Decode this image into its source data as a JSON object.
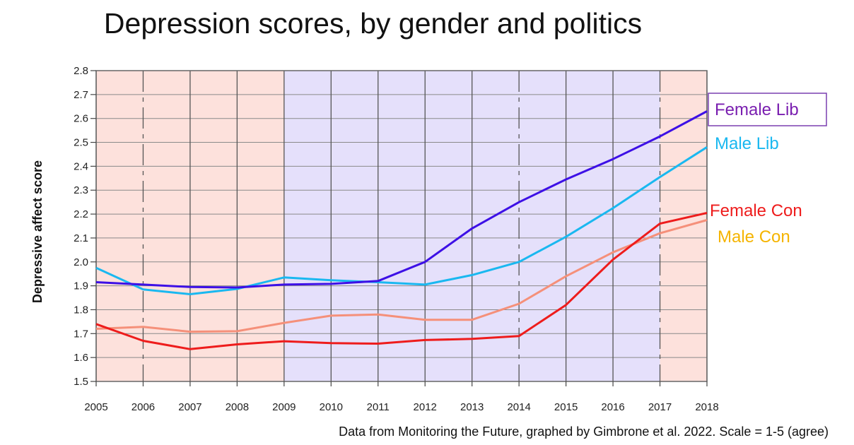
{
  "title": "Depression scores, by gender and politics",
  "source_note": "Data from Monitoring the Future, graphed by Gimbrone et al. 2022. Scale = 1-5 (agree)",
  "colors": {
    "conservative_band": "#fde1dc",
    "liberal_band": "#e5e0fb",
    "grid": "#8a8a8a",
    "female_lib": "#3d10e6",
    "male_lib": "#1ab8f0",
    "female_con": "#ee1c1c",
    "male_con": "#f5907a",
    "female_lib_label": "#7a1fb0",
    "male_lib_label": "#1ab8f0",
    "female_con_label": "#ee1c1c",
    "male_con_label": "#f5b400",
    "female_lib_box": "#7a3fb0"
  },
  "chart_data": {
    "type": "line",
    "xlabel": "",
    "ylabel": "Depressive affect score",
    "x": [
      2005,
      2006,
      2007,
      2008,
      2009,
      2010,
      2011,
      2012,
      2013,
      2014,
      2015,
      2016,
      2017,
      2018
    ],
    "x_tick_labels": [
      "2005",
      "2006",
      "2007",
      "2008",
      "2009",
      "2010",
      "2011",
      "2012",
      "2013",
      "2014",
      "2015",
      "2016",
      "2017",
      "2018"
    ],
    "ylim": [
      1.5,
      2.8
    ],
    "y_ticks": [
      "1.5",
      "1.6",
      "1.7",
      "1.8",
      "1.9",
      "2.0",
      "2.1",
      "2.2",
      "2.3",
      "2.4",
      "2.5",
      "2.6",
      "2.7",
      "2.8"
    ],
    "grid": true,
    "legend": "labels at right end of lines",
    "background_bands": [
      {
        "from": 2005,
        "to": 2009,
        "kind": "conservative"
      },
      {
        "from": 2009,
        "to": 2017,
        "kind": "liberal"
      },
      {
        "from": 2017,
        "to": 2018,
        "kind": "conservative"
      }
    ],
    "series": [
      {
        "name": "Female Lib",
        "key": "female_lib",
        "values": [
          1.915,
          1.905,
          1.895,
          1.893,
          1.905,
          1.908,
          1.92,
          2.0,
          2.14,
          2.25,
          2.345,
          2.43,
          2.525,
          2.63
        ]
      },
      {
        "name": "Male Lib",
        "key": "male_lib",
        "values": [
          1.975,
          1.885,
          1.865,
          1.887,
          1.935,
          1.923,
          1.915,
          1.905,
          1.945,
          2.0,
          2.105,
          2.225,
          2.355,
          2.48
        ]
      },
      {
        "name": "Female Con",
        "key": "female_con",
        "values": [
          1.74,
          1.67,
          1.635,
          1.655,
          1.668,
          1.66,
          1.658,
          1.673,
          1.678,
          1.69,
          1.82,
          2.01,
          2.16,
          2.205
        ]
      },
      {
        "name": "Male Con",
        "key": "male_con",
        "values": [
          1.72,
          1.728,
          1.708,
          1.71,
          1.745,
          1.775,
          1.78,
          1.758,
          1.758,
          1.825,
          1.94,
          2.04,
          2.12,
          2.175
        ]
      }
    ]
  }
}
